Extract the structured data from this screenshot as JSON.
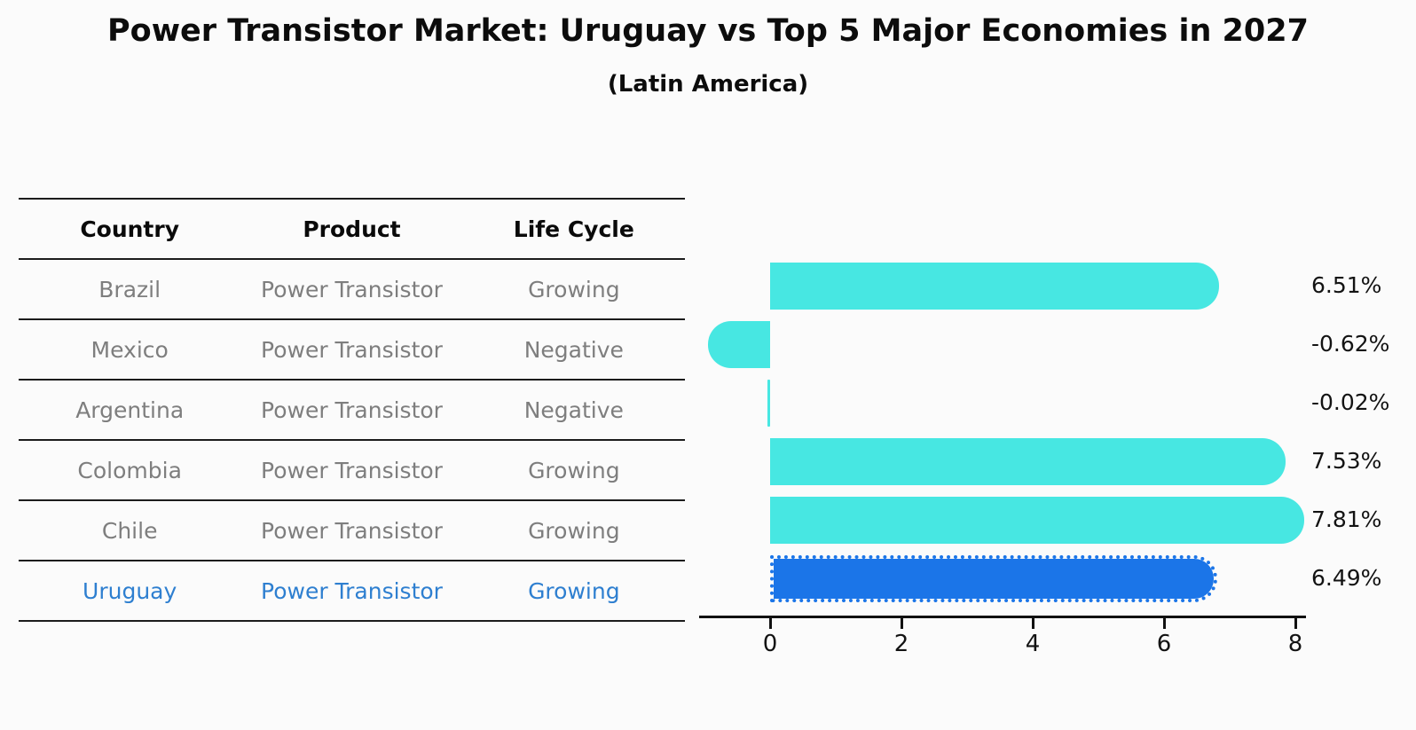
{
  "table": {
    "headers": [
      "Country",
      "Product",
      "Life Cycle"
    ],
    "rows": [
      [
        "Brazil",
        "Power Transistor",
        "Growing"
      ],
      [
        "Mexico",
        "Power Transistor",
        "Negative"
      ],
      [
        "Argentina",
        "Power Transistor",
        "Negative"
      ],
      [
        "Colombia",
        "Power Transistor",
        "Growing"
      ],
      [
        "Chile",
        "Power Transistor",
        "Growing"
      ],
      [
        "Uruguay",
        "Power Transistor",
        "Growing"
      ]
    ],
    "highlight_row": 5,
    "text_color": "#7e7e7e",
    "highlight_text_color": "#2e7fd0"
  },
  "chart_data": {
    "type": "bar",
    "orientation": "horizontal",
    "title": "Power Transistor Market: Uruguay vs Top 5 Major Economies in 2027",
    "subtitle": "(Latin America)",
    "categories": [
      "Brazil",
      "Mexico",
      "Argentina",
      "Colombia",
      "Chile",
      "Uruguay"
    ],
    "values": [
      6.51,
      -0.62,
      -0.02,
      7.53,
      7.81,
      6.49
    ],
    "value_labels": [
      "6.51%",
      "-0.62%",
      "-0.02%",
      "7.53%",
      "7.81%",
      "6.49%"
    ],
    "xlabel": "",
    "ylabel": "",
    "xticks": [
      0,
      2,
      4,
      6,
      8
    ],
    "xlim": [
      -1.05,
      8.15
    ],
    "grid": false,
    "legend": false,
    "bar_color": "#47e7e2",
    "highlight_color": "#1b75e8",
    "highlight_index": 5,
    "highlight_edge_style": "dotted"
  }
}
